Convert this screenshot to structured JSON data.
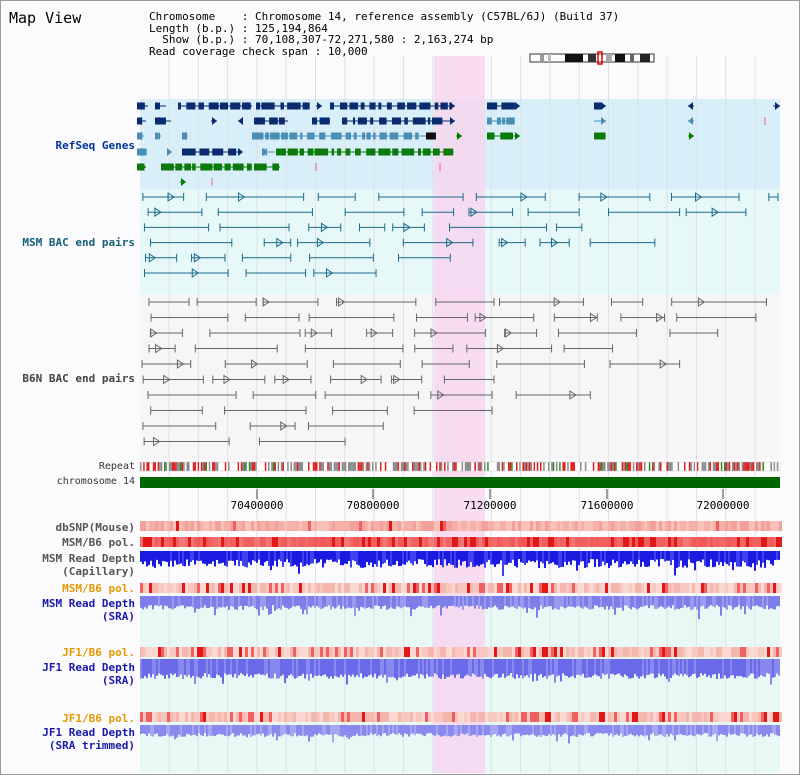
{
  "app": {
    "title": "Map View"
  },
  "info": {
    "chromosome_label": "Chromosome",
    "chromosome_value": "Chromosome 14, reference assembly (C57BL/6J) (Build 37)",
    "length_label": "Length (b.p.)",
    "length_value": "125,194,864",
    "show_label": "Show (b.p.)",
    "show_value": "70,108,307-72,271,580 : 2,163,274 bp",
    "coverage_label": "Read coverage check span",
    "coverage_value": "10,000"
  },
  "tracks": {
    "refseq": "RefSeq Genes",
    "msm_bac": "MSM BAC end pairs",
    "b6n_bac": "B6N BAC end pairs",
    "repeat": "Repeat",
    "chromosome": "chromosome 14",
    "dbsnp": "dbSNP(Mouse)",
    "msm_b6_pol": "MSM/B6 pol.",
    "msm_depth_cap_1": "MSM Read Depth",
    "msm_depth_cap_2": "(Capillary)",
    "msm_b6_pol_2": "MSM/B6 pol.",
    "msm_depth_sra_1": "MSM Read Depth",
    "msm_depth_sra_2": "(SRA)",
    "jf1_b6_pol": "JF1/B6 pol.",
    "jf1_depth_sra_1": "JF1 Read Depth",
    "jf1_depth_sra_2": "(SRA)",
    "jf1_b6_pol_2": "JF1/B6 pol.",
    "jf1_depth_trim_1": "JF1 Read Depth",
    "jf1_depth_trim_2": "(SRA trimmed)"
  },
  "axis": {
    "ticks": [
      "70400000",
      "70800000",
      "71200000",
      "71600000",
      "72000000"
    ]
  },
  "colors": {
    "refseq_dark": "#0a2b6e",
    "refseq_mid": "#4a8db5",
    "refseq_green": "#0a7a0a",
    "bac_line": "#1d6b8a",
    "b6n_line": "#666666",
    "highlight": "#f7d6f0",
    "chromosome_bar": "#006600",
    "depth_cap": "#2020e0",
    "depth_sra": "#8585ee"
  }
}
